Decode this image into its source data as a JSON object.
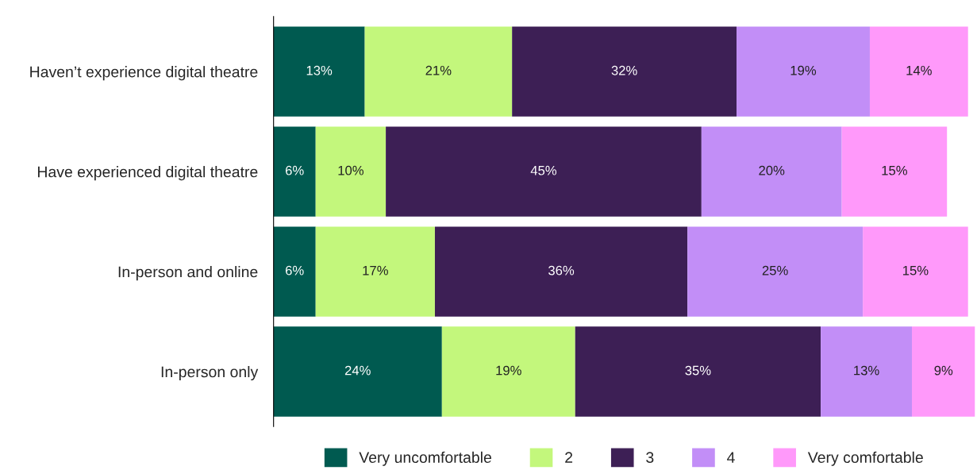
{
  "chart_data": {
    "type": "bar",
    "orientation": "horizontal",
    "stacked": true,
    "legend": "bottom",
    "grid": false,
    "tick_labels": "y",
    "categories": [
      "Haven’t experience digital theatre",
      "Have experienced digital theatre",
      "In-person and online",
      "In-person only"
    ],
    "series": [
      {
        "name": "Very uncomfortable",
        "color": "#005a50",
        "values": [
          13,
          6,
          6,
          24
        ],
        "value_labels": [
          "13%",
          "6%",
          "6%",
          "24%"
        ]
      },
      {
        "name": "2",
        "color": "#c3f77c",
        "values": [
          21,
          10,
          17,
          19
        ],
        "value_labels": [
          "21%",
          "10%",
          "17%",
          "19%"
        ]
      },
      {
        "name": "3",
        "color": "#3d1f55",
        "values": [
          32,
          45,
          36,
          35
        ],
        "value_labels": [
          "32%",
          "45%",
          "36%",
          "35%"
        ]
      },
      {
        "name": "4",
        "color": "#c28ef7",
        "values": [
          19,
          20,
          25,
          13
        ],
        "value_labels": [
          "19%",
          "20%",
          "25%",
          "13%"
        ]
      },
      {
        "name": "Very comfortable",
        "color": "#ff99fa",
        "values": [
          14,
          15,
          15,
          9
        ],
        "value_labels": [
          "14%",
          "15%",
          "15%",
          "9%"
        ]
      }
    ]
  }
}
